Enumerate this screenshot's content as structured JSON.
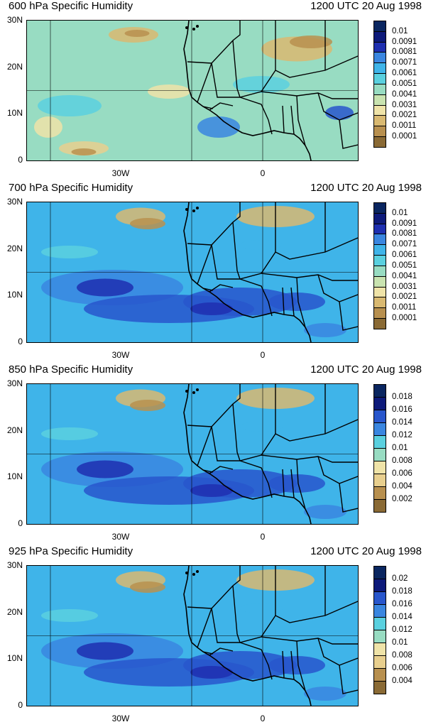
{
  "panels": [
    {
      "title": "600 hPa Specific Humidity",
      "time": "1200 UTC 20 Aug 1998",
      "colorbar_labels": [
        "0.01",
        "0.0091",
        "0.0081",
        "0.0071",
        "0.0061",
        "0.0051",
        "0.0041",
        "0.0031",
        "0.0021",
        "0.0011",
        "0.0001"
      ],
      "moisture": "dry"
    },
    {
      "title": "700 hPa Specific Humidity",
      "time": "1200 UTC 20 Aug 1998",
      "colorbar_labels": [
        "0.01",
        "0.0091",
        "0.0081",
        "0.0071",
        "0.0061",
        "0.0051",
        "0.0041",
        "0.0031",
        "0.0021",
        "0.0011",
        "0.0001"
      ],
      "moisture": "moist"
    },
    {
      "title": "850 hPa Specific Humidity",
      "time": "1200 UTC 20 Aug 1998",
      "colorbar_labels": [
        "0.018",
        "0.016",
        "0.014",
        "0.012",
        "0.01",
        "0.008",
        "0.006",
        "0.004",
        "0.002"
      ],
      "moisture": "moist"
    },
    {
      "title": "925 hPa Specific Humidity",
      "time": "1200 UTC 20 Aug 1998",
      "colorbar_labels": [
        "0.02",
        "0.018",
        "0.016",
        "0.014",
        "0.012",
        "0.01",
        "0.008",
        "0.006",
        "0.004"
      ],
      "moisture": "moist"
    }
  ],
  "y_ticks": [
    "30N",
    "20N",
    "10N",
    "0"
  ],
  "x_ticks": [
    "30W",
    "0"
  ],
  "colors": {
    "dark_brown": "#8a6a35",
    "brown": "#b8904f",
    "tan": "#d9b971",
    "sand": "#e8cf8e",
    "light_yellow": "#efe3a8",
    "pale_green": "#c9e3b0",
    "mint": "#98dcc2",
    "cyan": "#5ad0df",
    "sky": "#3fb4e9",
    "blue": "#3a86e0",
    "royal": "#2856cc",
    "indigo": "#1e2fb0",
    "navy": "#0d1a7a",
    "dark_navy": "#0a2660"
  }
}
